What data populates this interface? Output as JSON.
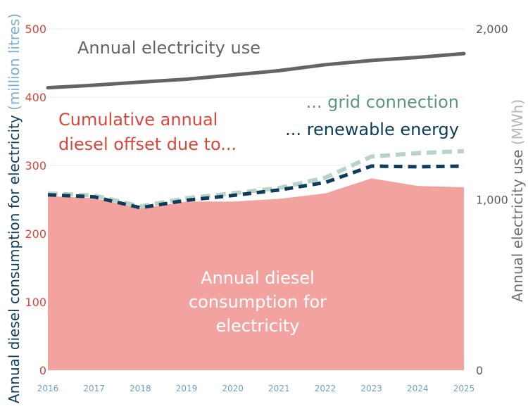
{
  "chart_data": {
    "type": "area",
    "categories": [
      "2016",
      "2017",
      "2018",
      "2019",
      "2020",
      "2021",
      "2022",
      "2023",
      "2024",
      "2025"
    ],
    "left_axis": {
      "label_main": "Annual diesel consumption for electricity",
      "label_unit": "(million litres)",
      "ticks": [
        "0",
        "100",
        "200",
        "300",
        "400",
        "500"
      ],
      "ylim": [
        0,
        500
      ]
    },
    "right_axis": {
      "label_main": "Annual electricity use",
      "label_unit": "(MWh)",
      "ticks": [
        "0",
        "1,000",
        "2,000"
      ],
      "ylim": [
        0,
        2000
      ]
    },
    "series": [
      {
        "name": "Annual diesel consumption for electricity",
        "axis": "left",
        "style": "area",
        "color": "#f2a3a0",
        "values": [
          255,
          252,
          237,
          247,
          247,
          251,
          259,
          281,
          270,
          268
        ]
      },
      {
        "name": "grid connection",
        "axis": "left",
        "style": "dashed",
        "color": "#b9d3c8",
        "values": [
          259,
          256,
          240,
          252,
          259,
          267,
          282,
          313,
          318,
          321
        ]
      },
      {
        "name": "renewable energy",
        "axis": "left",
        "style": "dashed",
        "color": "#0d3b5a",
        "values": [
          257,
          254,
          238,
          249,
          256,
          264,
          275,
          299,
          298,
          299
        ]
      },
      {
        "name": "Annual electricity use",
        "axis": "right",
        "style": "line",
        "color": "#646464",
        "values": [
          1655,
          1670,
          1688,
          1705,
          1730,
          1755,
          1790,
          1815,
          1833,
          1855
        ]
      }
    ],
    "annotations": {
      "electricity_use": "Annual electricity use",
      "offset_line1": "Cumulative annual",
      "offset_line2": "diesel offset due to...",
      "grid": "... grid connection",
      "renewable": "... renewable energy",
      "area_line1": "Annual diesel",
      "area_line2": "consumption for",
      "area_line3": "electricity"
    },
    "grid": true,
    "colors": {
      "left_tick": "#d9463b",
      "left_label": "#0d3b5a",
      "left_unit": "#7aaed0",
      "right_tick": "#5a5a5a",
      "right_label": "#6e6e6e",
      "right_unit": "#b5b5b5",
      "x_tick": "#6f9fc2",
      "gridline": "#ececec",
      "area_text": "#ffffff",
      "offset_text": "#d9463b",
      "grid_text": "#5a9680",
      "renewable_text": "#0d3b5a",
      "use_text": "#646464"
    }
  }
}
